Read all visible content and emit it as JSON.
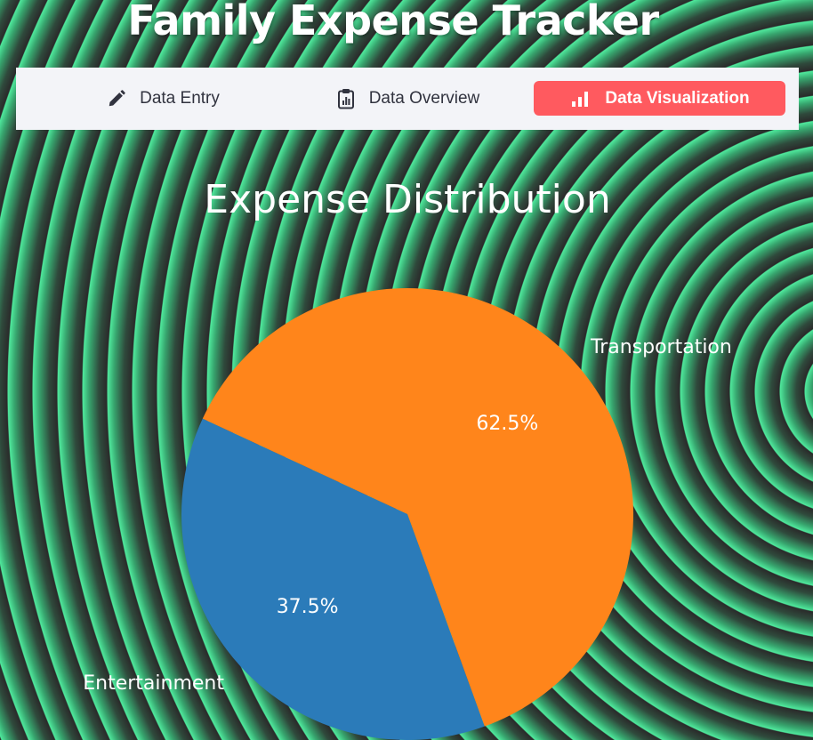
{
  "app": {
    "title": "Family Expense Tracker"
  },
  "tabs": [
    {
      "label": "Data Entry",
      "icon": "pencil-icon",
      "active": false
    },
    {
      "label": "Data Overview",
      "icon": "clipboard-chart-icon",
      "active": false
    },
    {
      "label": "Data Visualization",
      "icon": "bar-chart-icon",
      "active": true
    }
  ],
  "colors": {
    "active_tab": "#ff5a5f",
    "tabbar_bg": "#f3f4f8"
  },
  "chart_data": {
    "type": "pie",
    "title": "Expense Distribution",
    "categories": [
      "Entertainment",
      "Transportation"
    ],
    "values": [
      37.5,
      62.5
    ],
    "value_labels": [
      "37.5%",
      "62.5%"
    ],
    "colors": [
      "#2b7bb9",
      "#ff851b"
    ],
    "start_angle_deg": 155,
    "legend": "none"
  }
}
